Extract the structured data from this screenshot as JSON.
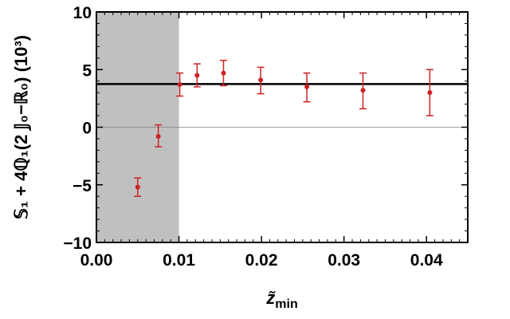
{
  "chart_data": {
    "type": "scatter",
    "title": "",
    "xlabel": "z̃",
    "xlabel_sub": "min",
    "ylabel": "𝕊₁ + 4ℚ₁(2 𝕁₀−ℝ₀) (10³)",
    "xlim": [
      0.0,
      0.045
    ],
    "ylim": [
      -10,
      10
    ],
    "x_ticks": [
      "0.00",
      "0.01",
      "0.02",
      "0.03",
      "0.04"
    ],
    "x_tick_values": [
      0.0,
      0.01,
      0.02,
      0.03,
      0.04
    ],
    "y_ticks": [
      "10",
      "5",
      "0",
      "−5",
      "−10"
    ],
    "y_tick_values": [
      10,
      5,
      0,
      -5,
      -10
    ],
    "shaded_region": {
      "x_from": 0.0,
      "x_to": 0.01,
      "color": "#c0c0c0"
    },
    "reference_lines": [
      {
        "y": 3.75,
        "color": "#000000",
        "style": "thick"
      },
      {
        "y": 0,
        "color": "#808080",
        "style": "thin"
      }
    ],
    "series": [
      {
        "color": "#cc2222",
        "points": [
          {
            "x": 0.005,
            "y": -5.2,
            "err_low": 0.8,
            "err_high": 0.8
          },
          {
            "x": 0.0075,
            "y": -0.8,
            "err_low": 0.9,
            "err_high": 1.0
          },
          {
            "x": 0.0101,
            "y": 3.7,
            "err_low": 1.0,
            "err_high": 1.0
          },
          {
            "x": 0.0122,
            "y": 4.5,
            "err_low": 1.0,
            "err_high": 1.0
          },
          {
            "x": 0.0154,
            "y": 4.7,
            "err_low": 1.1,
            "err_high": 1.1
          },
          {
            "x": 0.0199,
            "y": 4.1,
            "err_low": 1.2,
            "err_high": 1.1
          },
          {
            "x": 0.0255,
            "y": 3.5,
            "err_low": 1.3,
            "err_high": 1.2
          },
          {
            "x": 0.0323,
            "y": 3.2,
            "err_low": 1.6,
            "err_high": 1.5
          },
          {
            "x": 0.0404,
            "y": 3.0,
            "err_low": 2.0,
            "err_high": 2.0
          }
        ]
      }
    ]
  }
}
